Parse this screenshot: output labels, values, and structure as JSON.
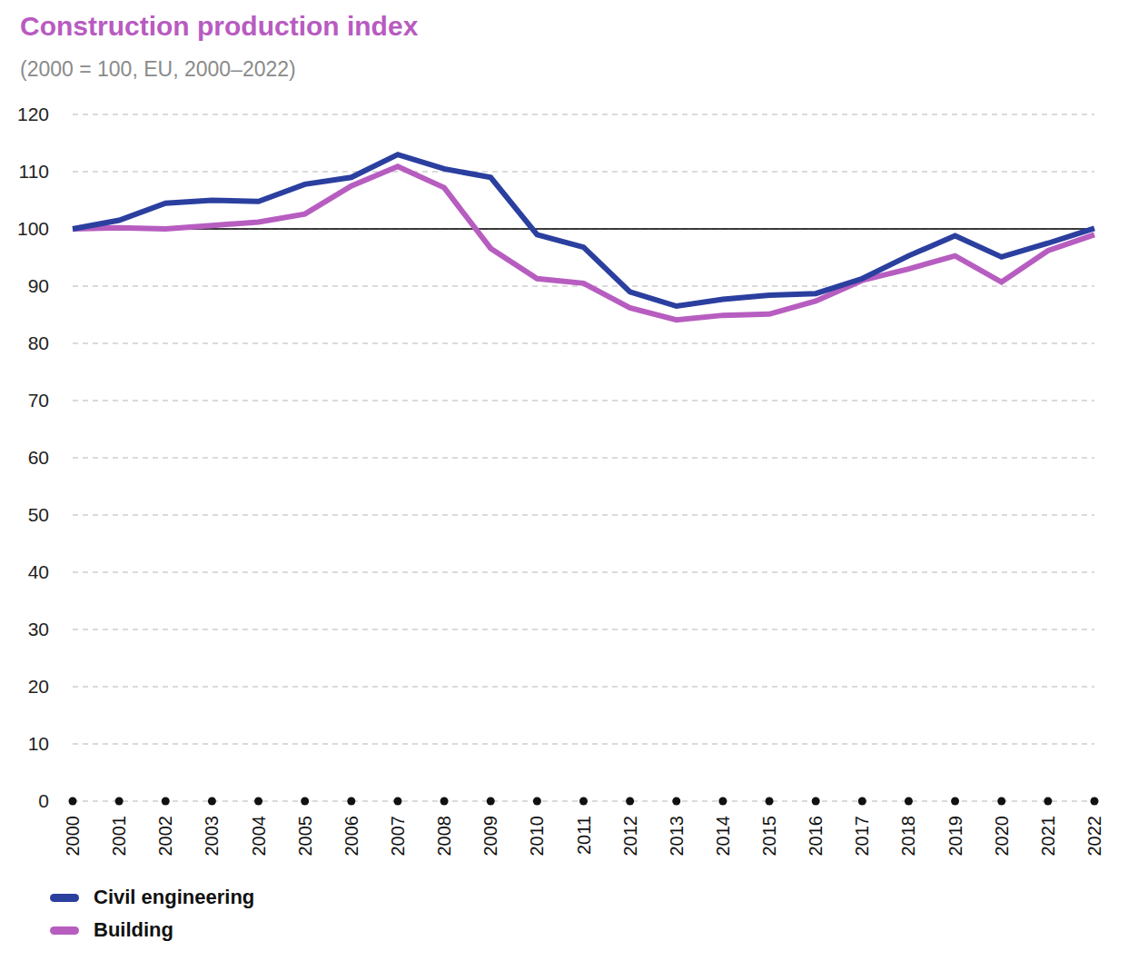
{
  "chart_data": {
    "type": "line",
    "title": "Construction production index",
    "subtitle": "(2000 = 100, EU, 2000–2022)",
    "categories": [
      "2000",
      "2001",
      "2002",
      "2003",
      "2004",
      "2005",
      "2006",
      "2007",
      "2008",
      "2009",
      "2010",
      "2011",
      "2012",
      "2013",
      "2014",
      "2015",
      "2016",
      "2017",
      "2018",
      "2019",
      "2020",
      "2021",
      "2022"
    ],
    "series": [
      {
        "name": "Civil engineering",
        "color": "#2b3f9f",
        "values": [
          100,
          101.5,
          104.5,
          105,
          104.8,
          107.8,
          109,
          113,
          110.5,
          109,
          99,
          96.8,
          89,
          86.5,
          87.7,
          88.4,
          88.7,
          91.3,
          95.3,
          98.8,
          95.1,
          97.5,
          100.1
        ]
      },
      {
        "name": "Building",
        "color": "#b75dc0",
        "values": [
          100,
          100.2,
          100,
          100.6,
          101.2,
          102.6,
          107.5,
          110.9,
          107.2,
          96.6,
          91.3,
          90.5,
          86.2,
          84.1,
          84.9,
          85.1,
          87.4,
          91,
          93,
          95.3,
          90.7,
          96.2,
          99
        ]
      }
    ],
    "ylim": [
      0,
      120
    ],
    "yticks": [
      0,
      10,
      20,
      30,
      40,
      50,
      60,
      70,
      80,
      90,
      100,
      110,
      120
    ],
    "baseline": 100,
    "grid": true,
    "legend": "bottom left"
  }
}
